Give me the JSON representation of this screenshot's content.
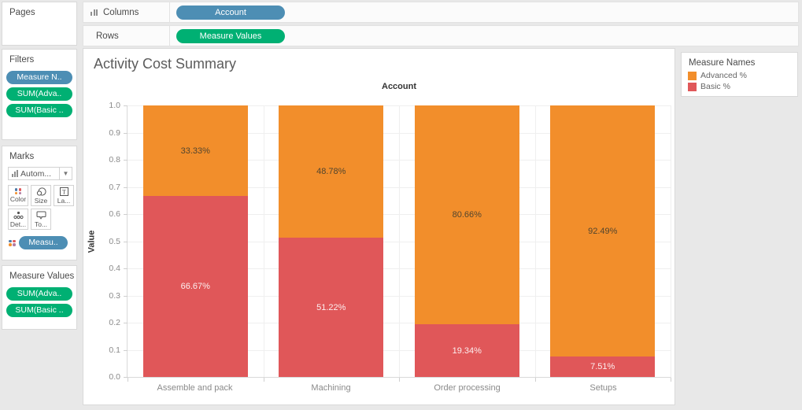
{
  "colors": {
    "advanced": "#F28E2B",
    "basic": "#E05759",
    "dimension_pill": "#4D8EB4",
    "measure_pill": "#00B073",
    "advanced_label_text": "#52452E",
    "basic_label_text": "rgba(255,255,255,0.9)"
  },
  "shelves": {
    "columns_label": "Columns",
    "rows_label": "Rows",
    "columns_pill": "Account",
    "rows_pill": "Measure Values"
  },
  "pages_card": {
    "title": "Pages"
  },
  "filters_card": {
    "title": "Filters",
    "pills": [
      {
        "label": "Measure N..",
        "type": "dimension"
      },
      {
        "label": "SUM(Adva..",
        "type": "measure"
      },
      {
        "label": "SUM(Basic ..",
        "type": "measure"
      }
    ]
  },
  "marks_card": {
    "title": "Marks",
    "mark_type_dropdown": "Autom...",
    "buttons": [
      {
        "label": "Color"
      },
      {
        "label": "Size"
      },
      {
        "label": "La..."
      },
      {
        "label": "Det..."
      },
      {
        "label": "To..."
      }
    ],
    "pill": "Measu.."
  },
  "measure_values_card": {
    "title": "Measure Values",
    "pills": [
      "SUM(Adva..",
      "SUM(Basic .."
    ]
  },
  "legend": {
    "title": "Measure Names",
    "items": [
      {
        "label": "Advanced %",
        "color": "#F28E2B"
      },
      {
        "label": "Basic %",
        "color": "#E05759"
      }
    ]
  },
  "chart_data": {
    "type": "bar",
    "stacked": true,
    "percent_of_total": true,
    "title": "Activity Cost Summary",
    "column_header": "Account",
    "xlabel": "",
    "ylabel": "Value",
    "ylim": [
      0,
      1
    ],
    "yticks": [
      0.0,
      0.1,
      0.2,
      0.3,
      0.4,
      0.5,
      0.6,
      0.7,
      0.8,
      0.9,
      1.0
    ],
    "grid": "horizontal",
    "legend_position": "top-right",
    "categories": [
      "Assemble and pack",
      "Machining",
      "Order processing",
      "Setups"
    ],
    "series": [
      {
        "name": "Advanced %",
        "color": "#F28E2B",
        "values": [
          0.3333,
          0.4878,
          0.8066,
          0.9249
        ],
        "labels": [
          "33.33%",
          "48.78%",
          "80.66%",
          "92.49%"
        ]
      },
      {
        "name": "Basic %",
        "color": "#E05759",
        "values": [
          0.6667,
          0.5122,
          0.1934,
          0.0751
        ],
        "labels": [
          "66.67%",
          "51.22%",
          "19.34%",
          "7.51%"
        ]
      }
    ]
  }
}
